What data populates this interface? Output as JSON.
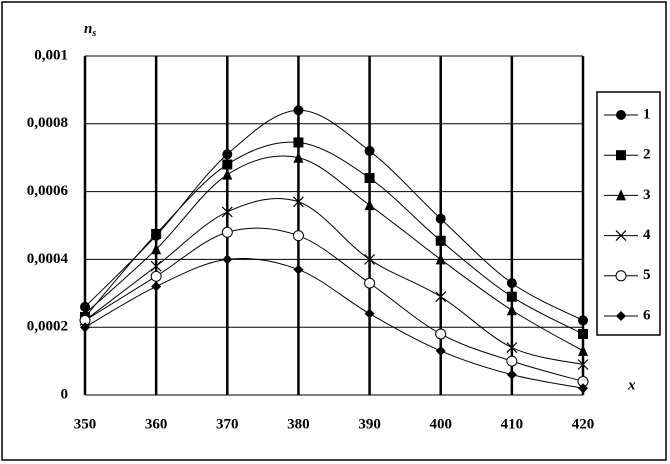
{
  "chart_data": {
    "type": "line",
    "smooth": true,
    "y_label": "n",
    "y_label_sub": "s",
    "x_label": "x",
    "x": [
      350,
      360,
      370,
      380,
      390,
      400,
      410,
      420
    ],
    "xlim": [
      350,
      420
    ],
    "xticks": [
      350,
      360,
      370,
      380,
      390,
      400,
      410,
      420
    ],
    "ylim": [
      0,
      0.001
    ],
    "yticks": [
      0,
      {
        "value": 0.0002,
        "label": "0,0002"
      },
      {
        "value": 0.0004,
        "label": "0,0004"
      },
      {
        "value": 0.0006,
        "label": "0,0006"
      },
      {
        "value": 0.0008,
        "label": "0,0008"
      },
      {
        "value": 0.001,
        "label": "0,001"
      }
    ],
    "grid": true,
    "legend": "right",
    "series": [
      {
        "name": "1",
        "color": "#000000",
        "marker": "circle",
        "values": [
          0.00026,
          0.00047,
          0.00071,
          0.00084,
          0.00072,
          0.00052,
          0.00033,
          0.00022
        ]
      },
      {
        "name": "2",
        "color": "#000000",
        "marker": "square",
        "values": [
          0.00023,
          0.000475,
          0.00068,
          0.000745,
          0.00064,
          0.000455,
          0.00029,
          0.00018
        ]
      },
      {
        "name": "3",
        "color": "#000000",
        "marker": "triangle",
        "values": [
          0.00024,
          0.00043,
          0.00065,
          0.0007,
          0.00056,
          0.0004,
          0.00025,
          0.00013
        ]
      },
      {
        "name": "4",
        "color": "#000000",
        "marker": "cross",
        "values": [
          0.00022,
          0.00038,
          0.00054,
          0.00057,
          0.0004,
          0.00029,
          0.00014,
          9e-05
        ]
      },
      {
        "name": "5",
        "color": "#000000",
        "marker": "open-circle",
        "values": [
          0.00022,
          0.00035,
          0.00048,
          0.00047,
          0.00033,
          0.00018,
          0.0001,
          4e-05
        ]
      },
      {
        "name": "6",
        "color": "#000000",
        "marker": "diamond",
        "values": [
          0.0002,
          0.00032,
          0.0004,
          0.00037,
          0.00024,
          0.00013,
          6e-05,
          2e-05
        ]
      }
    ]
  }
}
